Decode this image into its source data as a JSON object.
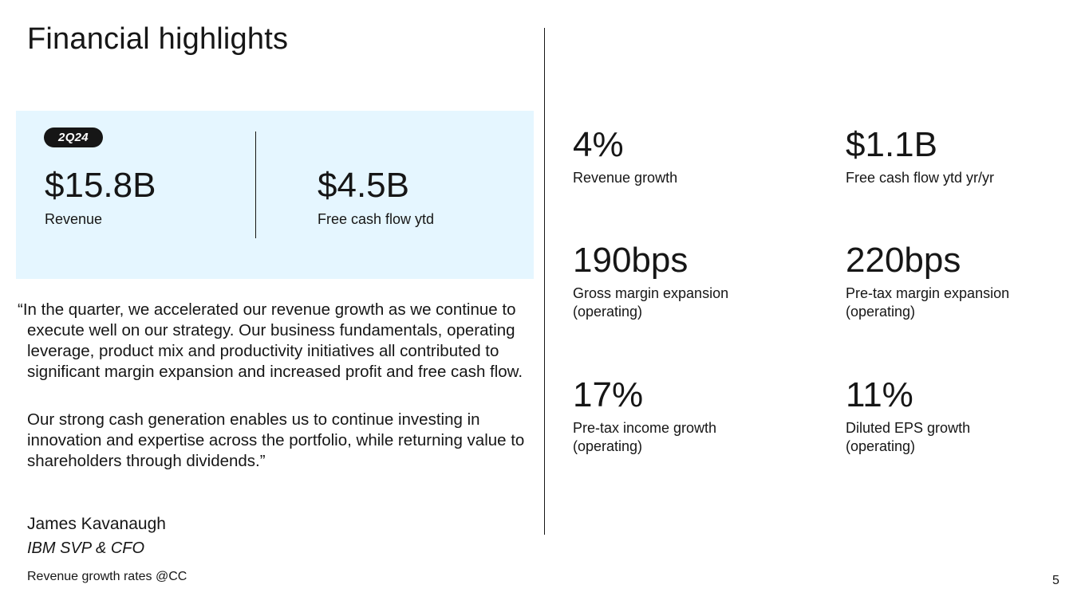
{
  "title": "Financial highlights",
  "highlight": {
    "badge": "2Q24",
    "metrics": [
      {
        "value": "$15.8B",
        "label": "Revenue"
      },
      {
        "value": "$4.5B",
        "label": "Free cash flow ytd"
      }
    ]
  },
  "quote": {
    "paragraphs": [
      "“In the quarter, we accelerated our revenue growth as we continue to execute well on our strategy. Our business fundamentals, operating leverage, product mix and productivity initiatives all contributed to significant margin expansion and increased profit and free cash flow.",
      "Our strong cash generation enables us to continue investing in innovation and expertise across the portfolio, while returning value to shareholders through dividends.”"
    ],
    "author_name": "James Kavanaugh",
    "author_title": "IBM SVP & CFO"
  },
  "footnote": "Revenue growth rates @CC",
  "page_number": "5",
  "metrics": [
    {
      "value": "4%",
      "label": "Revenue growth",
      "sub": ""
    },
    {
      "value": "$1.1B",
      "label": "Free cash flow ytd yr/yr",
      "sub": ""
    },
    {
      "value": "190bps",
      "label": "Gross margin expansion",
      "sub": "(operating)"
    },
    {
      "value": "220bps",
      "label": "Pre-tax margin expansion",
      "sub": "(operating)"
    },
    {
      "value": "17%",
      "label": "Pre-tax income growth",
      "sub": "(operating)"
    },
    {
      "value": "11%",
      "label": "Diluted EPS growth",
      "sub": "(operating)"
    }
  ]
}
